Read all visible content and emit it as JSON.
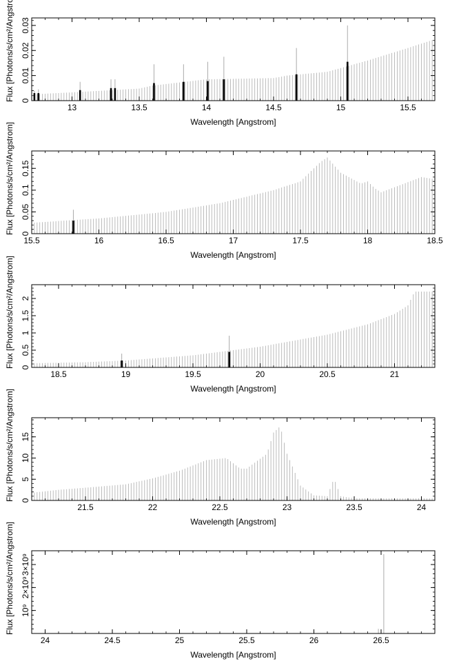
{
  "chart_data": [
    {
      "type": "bar",
      "xlabel": "Wavelength [Angstrom]",
      "ylabel": "Flux [Photons/s/cm²/Angstrom]",
      "xlim": [
        12.7,
        15.7
      ],
      "ylim": [
        0,
        0.033
      ],
      "xticks": [
        "13",
        "13.5",
        "14",
        "14.5",
        "15",
        "15.5"
      ],
      "yticks": [
        "0",
        "0.01",
        "0.02",
        "0.03"
      ],
      "grid": false,
      "colors": {
        "continuum": "#aaaaaa",
        "line": "#000000"
      },
      "continuum": {
        "x": [
          12.7,
          13.0,
          13.5,
          13.6,
          14.0,
          14.5,
          14.6,
          14.9,
          15.2,
          15.5,
          15.7
        ],
        "y": [
          0.0025,
          0.0033,
          0.0048,
          0.006,
          0.0085,
          0.009,
          0.01,
          0.0115,
          0.016,
          0.021,
          0.0245
        ]
      },
      "lines": [
        {
          "x": 12.72,
          "y": 0.003,
          "peak": 0.004
        },
        {
          "x": 12.75,
          "y": 0.003,
          "peak": 0.0045
        },
        {
          "x": 13.06,
          "y": 0.0042,
          "peak": 0.0075
        },
        {
          "x": 13.29,
          "y": 0.005,
          "peak": 0.0085
        },
        {
          "x": 13.32,
          "y": 0.005,
          "peak": 0.0085
        },
        {
          "x": 13.61,
          "y": 0.007,
          "peak": 0.0145
        },
        {
          "x": 13.83,
          "y": 0.0075,
          "peak": 0.0145
        },
        {
          "x": 14.01,
          "y": 0.0078,
          "peak": 0.0155
        },
        {
          "x": 14.13,
          "y": 0.0085,
          "peak": 0.0175
        },
        {
          "x": 14.67,
          "y": 0.0105,
          "peak": 0.021
        },
        {
          "x": 15.05,
          "y": 0.0155,
          "peak": 0.03
        }
      ]
    },
    {
      "type": "bar",
      "xlabel": "Wavelength [Angstrom]",
      "ylabel": "Flux [Photons/s/cm²/Angstrom]",
      "xlim": [
        15.5,
        18.5
      ],
      "ylim": [
        0,
        0.19
      ],
      "xticks": [
        "15.5",
        "16",
        "16.5",
        "17",
        "17.5",
        "18",
        "18.5"
      ],
      "yticks": [
        "0",
        "0.05",
        "0.1",
        "0.15"
      ],
      "grid": false,
      "colors": {
        "continuum": "#aaaaaa",
        "line": "#000000"
      },
      "continuum": {
        "x": [
          15.5,
          16.0,
          16.5,
          16.9,
          17.3,
          17.5,
          17.65,
          17.7,
          17.8,
          17.95,
          18.0,
          18.05,
          18.1,
          18.4,
          18.5
        ],
        "y": [
          0.025,
          0.035,
          0.05,
          0.07,
          0.1,
          0.12,
          0.165,
          0.175,
          0.14,
          0.115,
          0.12,
          0.105,
          0.095,
          0.13,
          0.125
        ]
      },
      "lines": [
        {
          "x": 15.81,
          "y": 0.03,
          "peak": 0.055
        }
      ]
    },
    {
      "type": "bar",
      "xlabel": "Wavelength [Angstrom]",
      "ylabel": "Flux [Photons/s/cm²/Angstrom]",
      "xlim": [
        18.3,
        21.3
      ],
      "ylim": [
        0,
        2.4
      ],
      "xticks": [
        "18.5",
        "19",
        "19.5",
        "20",
        "20.5",
        "21"
      ],
      "yticks": [
        "0",
        "0.5",
        "1",
        "1.5",
        "2"
      ],
      "grid": false,
      "colors": {
        "continuum": "#aaaaaa",
        "line": "#000000"
      },
      "continuum": {
        "x": [
          18.3,
          18.7,
          19.0,
          19.5,
          20.0,
          20.5,
          20.8,
          21.0,
          21.1,
          21.15,
          21.3
        ],
        "y": [
          0.12,
          0.15,
          0.2,
          0.35,
          0.6,
          0.95,
          1.25,
          1.55,
          1.8,
          2.2,
          2.2
        ]
      },
      "lines": [
        {
          "x": 18.97,
          "y": 0.2,
          "peak": 0.4
        },
        {
          "x": 19.77,
          "y": 0.45,
          "peak": 0.92
        }
      ]
    },
    {
      "type": "bar",
      "xlabel": "Wavelength [Angstrom]",
      "ylabel": "Flux [Photons/s/cm²/Angstrom]",
      "xlim": [
        21.1,
        24.1
      ],
      "ylim": [
        0,
        19.5
      ],
      "xticks": [
        "21.5",
        "22",
        "22.5",
        "23",
        "23.5",
        "24"
      ],
      "yticks": [
        "0",
        "5",
        "10",
        "15"
      ],
      "grid": false,
      "colors": {
        "continuum": "#aaaaaa",
        "line": "#000000"
      },
      "continuum": {
        "x": [
          21.1,
          21.3,
          21.5,
          21.8,
          22.0,
          22.2,
          22.4,
          22.55,
          22.65,
          22.7,
          22.85,
          22.9,
          22.95,
          23.0,
          23.1,
          23.2,
          23.3,
          23.35,
          23.4,
          23.5,
          24.1
        ],
        "y": [
          1.8,
          2.5,
          3.0,
          3.8,
          5.2,
          7.0,
          9.5,
          10.0,
          7.5,
          7.5,
          11.0,
          16.0,
          17.5,
          11.0,
          3.5,
          1.2,
          1.0,
          5.2,
          1.0,
          0.5,
          0.5
        ]
      },
      "lines": []
    },
    {
      "type": "bar",
      "xlabel": "Wavelength [Angstrom]",
      "ylabel": "Flux [Photons/s/cm²/Angstrom]",
      "xlim": [
        23.9,
        26.9
      ],
      "ylim": [
        0,
        3600000000.0
      ],
      "xticks": [
        "24",
        "24.5",
        "25",
        "25.5",
        "26",
        "26.5"
      ],
      "yticks": [
        "10⁹",
        "2×10⁹",
        "3×10⁹"
      ],
      "yticks_values": [
        1000000000.0,
        2000000000.0,
        3000000000.0
      ],
      "grid": false,
      "colors": {
        "continuum": "#aaaaaa",
        "line": "#aaaaaa"
      },
      "continuum": {
        "x": [
          23.9,
          26.9
        ],
        "y": [
          0,
          0
        ]
      },
      "lines": [
        {
          "x": 26.48,
          "y": 0,
          "peak": 200000000.0
        },
        {
          "x": 26.52,
          "y": 0,
          "peak": 3450000000.0
        }
      ]
    }
  ]
}
